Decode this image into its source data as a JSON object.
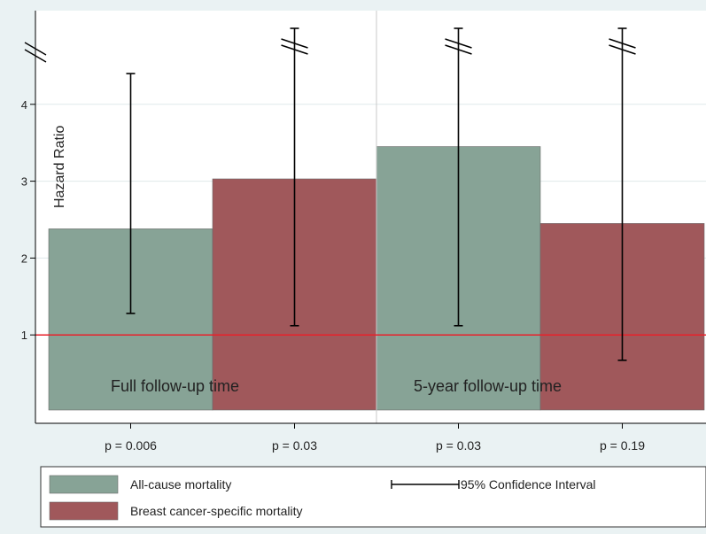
{
  "chart_data": {
    "type": "bar",
    "ylabel": "Hazard Ratio",
    "yticks": [
      "1",
      "2",
      "3",
      "4"
    ],
    "ylim": [
      0,
      5
    ],
    "axis_break": true,
    "reference_line": 1,
    "groups": [
      {
        "label": "Full follow-up time"
      },
      {
        "label": "5-year follow-up time"
      }
    ],
    "categories": [
      "p = 0.006",
      "p = 0.03",
      "p = 0.03",
      "p = 0.19"
    ],
    "series": [
      {
        "name": "All-cause mortality",
        "color": "#87a396"
      },
      {
        "name": "Breast cancer-specific mortality",
        "color": "#a0585b"
      }
    ],
    "bars": [
      {
        "series": 0,
        "group": 0,
        "value": 2.38,
        "ci_low": 1.28,
        "ci_high": 4.4
      },
      {
        "series": 1,
        "group": 0,
        "value": 3.03,
        "ci_low": 1.12,
        "ci_high": null
      },
      {
        "series": 0,
        "group": 1,
        "value": 3.45,
        "ci_low": 1.12,
        "ci_high": null
      },
      {
        "series": 1,
        "group": 1,
        "value": 2.45,
        "ci_low": 0.67,
        "ci_high": null
      }
    ],
    "legend": {
      "items": [
        "All-cause mortality",
        "Breast cancer-specific mortality"
      ],
      "ci_label": "95% Confidence Interval",
      "position": "bottom"
    },
    "colors": {
      "background": "#eaf2f3",
      "plot_bg": "#ffffff",
      "reference_line": "#e8202a",
      "errorbar": "#000000"
    }
  }
}
